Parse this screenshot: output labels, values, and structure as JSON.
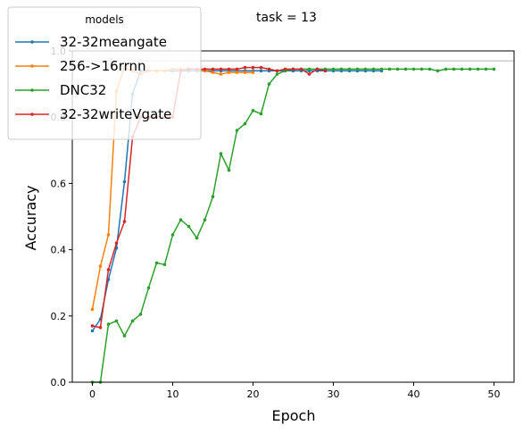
{
  "chart_data": {
    "type": "line",
    "title": "task = 13",
    "xlabel": "Epoch",
    "ylabel": "Accuracy",
    "xlim": [
      -2.5,
      52.5
    ],
    "ylim": [
      0,
      1.0
    ],
    "xticks": [
      0,
      10,
      20,
      30,
      40,
      50
    ],
    "yticks": [
      0.0,
      0.2,
      0.4,
      0.6,
      0.8,
      1.0
    ],
    "reference_line": 0.97,
    "grid": false,
    "legend": {
      "title": "models",
      "placement": "top-left"
    },
    "series": [
      {
        "name": "32-32meangate",
        "color": "#1f77b4",
        "x": [
          0,
          1,
          2,
          3,
          4,
          5,
          6,
          7,
          8,
          9,
          10,
          11,
          12,
          13,
          14,
          15,
          16,
          17,
          18,
          19,
          20,
          21,
          22,
          23,
          24,
          25,
          26,
          27,
          28,
          29,
          30,
          31,
          32,
          33,
          34,
          35,
          36
        ],
        "y": [
          0.155,
          0.19,
          0.31,
          0.405,
          0.605,
          0.87,
          0.94,
          0.94,
          0.94,
          0.94,
          0.94,
          0.94,
          0.94,
          0.94,
          0.94,
          0.94,
          0.94,
          0.94,
          0.94,
          0.94,
          0.94,
          0.94,
          0.94,
          0.94,
          0.94,
          0.94,
          0.94,
          0.94,
          0.94,
          0.94,
          0.94,
          0.94,
          0.94,
          0.94,
          0.94,
          0.94,
          0.94
        ]
      },
      {
        "name": "256->16rrnn",
        "color": "#ff7f0e",
        "x": [
          0,
          1,
          2,
          3,
          4,
          5,
          6,
          7,
          8,
          9,
          10,
          11,
          12,
          13,
          14,
          15,
          16,
          17,
          18,
          19,
          20
        ],
        "y": [
          0.22,
          0.35,
          0.445,
          0.88,
          0.95,
          0.94,
          0.93,
          0.94,
          0.94,
          0.94,
          0.945,
          0.945,
          0.945,
          0.945,
          0.94,
          0.935,
          0.93,
          0.935,
          0.935,
          0.935,
          0.935
        ]
      },
      {
        "name": "DNC32",
        "color": "#2ca02c",
        "x": [
          0,
          1,
          2,
          3,
          4,
          5,
          6,
          7,
          8,
          9,
          10,
          11,
          12,
          13,
          14,
          15,
          16,
          17,
          18,
          19,
          20,
          21,
          22,
          23,
          24,
          25,
          26,
          27,
          28,
          29,
          30,
          31,
          32,
          33,
          34,
          35,
          36,
          37,
          38,
          39,
          40,
          41,
          42,
          43,
          44,
          45,
          46,
          47,
          48,
          49,
          50
        ],
        "y": [
          0.0,
          0.0,
          0.175,
          0.185,
          0.14,
          0.185,
          0.205,
          0.285,
          0.36,
          0.355,
          0.445,
          0.49,
          0.47,
          0.435,
          0.49,
          0.56,
          0.69,
          0.64,
          0.76,
          0.78,
          0.82,
          0.81,
          0.9,
          0.93,
          0.94,
          0.945,
          0.945,
          0.945,
          0.945,
          0.945,
          0.945,
          0.945,
          0.945,
          0.945,
          0.945,
          0.945,
          0.945,
          0.945,
          0.945,
          0.945,
          0.945,
          0.945,
          0.945,
          0.94,
          0.945,
          0.945,
          0.945,
          0.945,
          0.945,
          0.945,
          0.945
        ]
      },
      {
        "name": "32-32writeVgate",
        "color": "#d62728",
        "x": [
          0,
          1,
          2,
          3,
          4,
          5,
          6,
          7,
          8,
          9,
          10,
          11,
          12,
          13,
          14,
          15,
          16,
          17,
          18,
          19,
          20,
          21,
          22,
          23,
          24,
          25,
          26,
          27,
          28,
          29
        ],
        "y": [
          0.17,
          0.165,
          0.34,
          0.42,
          0.485,
          0.74,
          0.8,
          0.8,
          0.8,
          0.8,
          0.8,
          0.94,
          0.945,
          0.945,
          0.945,
          0.945,
          0.945,
          0.945,
          0.945,
          0.95,
          0.95,
          0.95,
          0.945,
          0.94,
          0.945,
          0.945,
          0.945,
          0.93,
          0.945,
          0.94
        ]
      }
    ]
  }
}
